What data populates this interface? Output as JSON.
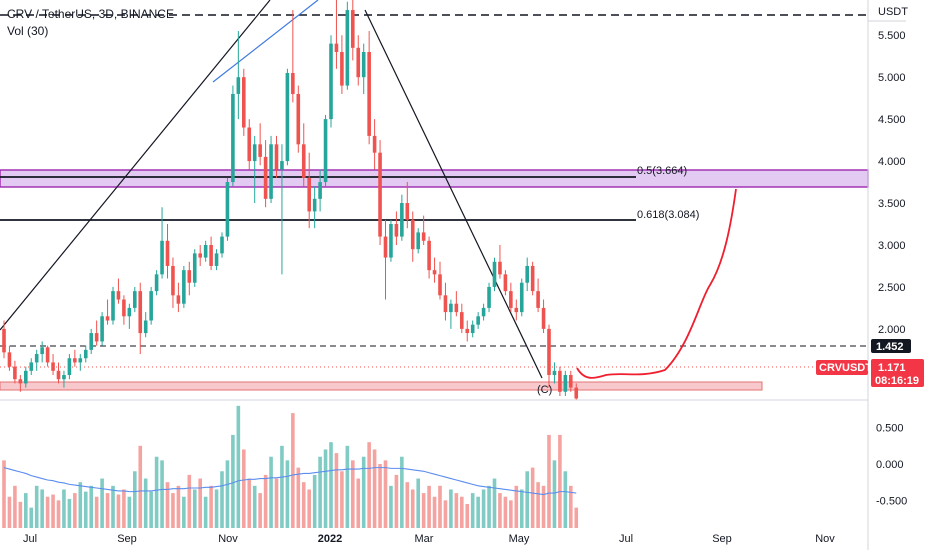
{
  "header": {
    "symbol_title": "CRV / TetherUS, 3D, BINANCE",
    "volume_label": "Vol (30)"
  },
  "price_scale": {
    "currency": "USDT"
  },
  "colors": {
    "up": "#26a69a",
    "down": "#ef5350",
    "vol_up": "#80cbc4",
    "vol_down": "#f5a3a0",
    "ma": "#5b8def",
    "zone": "#9c27b0",
    "accent_red": "#f23645"
  },
  "chart_data": [
    {
      "type": "candlestick",
      "title": "CRV / TetherUS, 3D, BINANCE",
      "x_ticks": [
        "Jul",
        "Sep",
        "Nov",
        "2022",
        "Mar",
        "May",
        "Jul",
        "Sep",
        "Nov"
      ],
      "y_ticks": [
        "5.500",
        "5.000",
        "4.500",
        "4.000",
        "3.500",
        "3.000",
        "2.500",
        "2.000"
      ],
      "ylim": [
        1.2,
        5.92
      ],
      "grid": false,
      "horizontal_levels": [
        {
          "label": "0.5(3.664)",
          "value": 3.664
        },
        {
          "label": "0.618(3.084)",
          "value": 3.084
        }
      ],
      "price_markers": [
        {
          "label": "1.452",
          "value": 1.452
        },
        {
          "label": "CRVUSDT",
          "value": 1.171,
          "extra": "1.171",
          "countdown": "08:16:19"
        }
      ],
      "annotations": [
        "(C)"
      ],
      "series": [
        {
          "name": "CRVUSDT",
          "ohlc": [
            [
              2.0,
              2.1,
              1.65,
              1.72
            ],
            [
              1.72,
              1.8,
              1.5,
              1.55
            ],
            [
              1.55,
              1.62,
              1.35,
              1.4
            ],
            [
              1.4,
              1.45,
              1.25,
              1.35
            ],
            [
              1.35,
              1.55,
              1.3,
              1.5
            ],
            [
              1.5,
              1.65,
              1.45,
              1.6
            ],
            [
              1.6,
              1.75,
              1.5,
              1.7
            ],
            [
              1.7,
              1.85,
              1.6,
              1.78
            ],
            [
              1.78,
              1.8,
              1.55,
              1.6
            ],
            [
              1.6,
              1.7,
              1.45,
              1.5
            ],
            [
              1.5,
              1.6,
              1.35,
              1.4
            ],
            [
              1.4,
              1.5,
              1.3,
              1.45
            ],
            [
              1.45,
              1.7,
              1.4,
              1.65
            ],
            [
              1.65,
              1.75,
              1.55,
              1.6
            ],
            [
              1.6,
              1.7,
              1.5,
              1.65
            ],
            [
              1.65,
              1.8,
              1.6,
              1.75
            ],
            [
              1.75,
              2.0,
              1.7,
              1.95
            ],
            [
              1.95,
              2.1,
              1.8,
              1.85
            ],
            [
              1.85,
              2.2,
              1.8,
              2.15
            ],
            [
              2.15,
              2.35,
              2.05,
              2.1
            ],
            [
              2.1,
              2.5,
              2.05,
              2.45
            ],
            [
              2.45,
              2.6,
              2.3,
              2.35
            ],
            [
              2.35,
              2.4,
              2.05,
              2.15
            ],
            [
              2.15,
              2.3,
              2.0,
              2.25
            ],
            [
              2.25,
              2.5,
              2.2,
              2.45
            ],
            [
              2.45,
              2.55,
              1.7,
              1.95
            ],
            [
              1.95,
              2.2,
              1.9,
              2.1
            ],
            [
              2.1,
              2.5,
              2.05,
              2.45
            ],
            [
              2.45,
              2.7,
              2.4,
              2.65
            ],
            [
              2.65,
              3.45,
              2.6,
              3.05
            ],
            [
              3.05,
              3.25,
              2.6,
              2.75
            ],
            [
              2.75,
              2.85,
              2.25,
              2.4
            ],
            [
              2.4,
              2.55,
              2.2,
              2.3
            ],
            [
              2.3,
              2.75,
              2.25,
              2.7
            ],
            [
              2.7,
              2.8,
              2.4,
              2.55
            ],
            [
              2.55,
              2.95,
              2.5,
              2.9
            ],
            [
              2.9,
              3.0,
              2.75,
              2.85
            ],
            [
              2.85,
              3.05,
              2.8,
              3.0
            ],
            [
              3.0,
              3.1,
              2.7,
              2.75
            ],
            [
              2.75,
              2.95,
              2.7,
              2.9
            ],
            [
              2.9,
              3.15,
              2.85,
              3.1
            ],
            [
              3.1,
              3.8,
              3.05,
              3.75
            ],
            [
              3.75,
              4.9,
              3.7,
              4.8
            ],
            [
              4.8,
              5.55,
              4.5,
              5.0
            ],
            [
              5.0,
              5.1,
              4.3,
              4.4
            ],
            [
              4.4,
              4.5,
              3.9,
              4.0
            ],
            [
              4.0,
              4.3,
              3.5,
              4.2
            ],
            [
              4.2,
              4.45,
              3.95,
              4.05
            ],
            [
              4.05,
              4.25,
              3.45,
              3.55
            ],
            [
              3.55,
              4.3,
              3.5,
              4.2
            ],
            [
              4.2,
              4.3,
              3.8,
              3.9
            ],
            [
              3.9,
              4.2,
              2.65,
              4.0
            ],
            [
              4.0,
              5.1,
              3.95,
              5.05
            ],
            [
              5.05,
              5.8,
              4.7,
              4.8
            ],
            [
              4.8,
              4.9,
              4.1,
              4.2
            ],
            [
              4.2,
              4.45,
              3.7,
              3.8
            ],
            [
              3.8,
              4.1,
              3.2,
              3.4
            ],
            [
              3.4,
              3.7,
              3.2,
              3.55
            ],
            [
              3.55,
              3.9,
              3.4,
              3.75
            ],
            [
              3.75,
              4.55,
              3.7,
              4.5
            ],
            [
              4.5,
              5.5,
              4.4,
              5.4
            ],
            [
              5.4,
              5.95,
              5.1,
              5.3
            ],
            [
              5.3,
              5.5,
              4.8,
              4.9
            ],
            [
              4.9,
              5.9,
              4.85,
              5.8
            ],
            [
              5.8,
              5.95,
              5.2,
              5.35
            ],
            [
              5.35,
              5.5,
              4.9,
              5.0
            ],
            [
              5.0,
              5.4,
              4.8,
              5.3
            ],
            [
              5.3,
              5.55,
              4.2,
              4.3
            ],
            [
              4.3,
              4.5,
              3.9,
              4.1
            ],
            [
              4.1,
              4.25,
              3.0,
              3.1
            ],
            [
              3.1,
              3.3,
              2.35,
              2.85
            ],
            [
              2.85,
              3.3,
              2.8,
              3.25
            ],
            [
              3.25,
              3.4,
              3.0,
              3.1
            ],
            [
              3.1,
              3.6,
              3.05,
              3.5
            ],
            [
              3.5,
              3.75,
              3.2,
              3.3
            ],
            [
              3.3,
              3.4,
              2.8,
              2.95
            ],
            [
              2.95,
              3.2,
              2.9,
              3.15
            ],
            [
              3.15,
              3.35,
              3.0,
              3.05
            ],
            [
              3.05,
              3.1,
              2.6,
              2.7
            ],
            [
              2.7,
              2.85,
              2.55,
              2.65
            ],
            [
              2.65,
              2.8,
              2.35,
              2.4
            ],
            [
              2.4,
              2.55,
              2.1,
              2.2
            ],
            [
              2.2,
              2.35,
              2.0,
              2.3
            ],
            [
              2.3,
              2.45,
              2.15,
              2.2
            ],
            [
              2.2,
              2.3,
              1.95,
              2.0
            ],
            [
              2.0,
              2.1,
              1.85,
              1.95
            ],
            [
              1.95,
              2.1,
              1.9,
              2.05
            ],
            [
              2.05,
              2.2,
              2.0,
              2.15
            ],
            [
              2.15,
              2.3,
              2.1,
              2.25
            ],
            [
              2.25,
              2.55,
              2.2,
              2.5
            ],
            [
              2.5,
              2.85,
              2.45,
              2.8
            ],
            [
              2.8,
              3.0,
              2.6,
              2.65
            ],
            [
              2.65,
              2.7,
              2.4,
              2.45
            ],
            [
              2.45,
              2.55,
              2.2,
              2.25
            ],
            [
              2.25,
              2.35,
              2.1,
              2.2
            ],
            [
              2.2,
              2.6,
              2.15,
              2.55
            ],
            [
              2.55,
              2.85,
              2.45,
              2.75
            ],
            [
              2.75,
              2.8,
              2.4,
              2.45
            ],
            [
              2.45,
              2.6,
              2.2,
              2.25
            ],
            [
              2.25,
              2.35,
              1.95,
              2.0
            ],
            [
              2.0,
              2.05,
              1.3,
              1.45
            ],
            [
              1.45,
              1.6,
              1.35,
              1.5
            ],
            [
              1.5,
              1.55,
              1.2,
              1.25
            ],
            [
              1.25,
              1.5,
              1.2,
              1.45
            ],
            [
              1.45,
              1.5,
              1.25,
              1.3
            ],
            [
              1.3,
              1.35,
              1.15,
              1.17
            ]
          ]
        },
        {
          "name": "Vol (30)",
          "y_ticks": [
            "0.500",
            "0.000",
            "-0.500"
          ],
          "ylim": [
            -0.88,
            0.88
          ],
          "values": [
            0.05,
            -0.45,
            -0.3,
            -0.52,
            -0.4,
            -0.6,
            -0.3,
            -0.35,
            -0.45,
            -0.42,
            -0.5,
            -0.35,
            -0.48,
            -0.4,
            -0.25,
            -0.38,
            -0.3,
            -0.45,
            -0.2,
            -0.4,
            -0.3,
            -0.42,
            -0.35,
            -0.45,
            -0.1,
            0.25,
            -0.2,
            -0.38,
            0.1,
            0.05,
            -0.25,
            -0.4,
            -0.3,
            -0.45,
            -0.15,
            -0.35,
            -0.2,
            -0.45,
            -0.3,
            -0.35,
            -0.1,
            0.05,
            0.4,
            0.8,
            0.2,
            -0.2,
            -0.3,
            -0.4,
            -0.15,
            0.1,
            -0.2,
            0.25,
            0.05,
            0.7,
            -0.05,
            -0.25,
            -0.35,
            -0.15,
            0.1,
            0.2,
            0.3,
            0.15,
            -0.1,
            0.25,
            0.05,
            -0.2,
            0.1,
            0.3,
            0.2,
            0.0,
            0.05,
            -0.3,
            -0.15,
            0.1,
            -0.25,
            -0.35,
            -0.2,
            -0.4,
            -0.3,
            -0.45,
            -0.3,
            -0.5,
            -0.35,
            -0.4,
            -0.45,
            -0.55,
            -0.4,
            -0.45,
            -0.35,
            -0.3,
            -0.2,
            -0.4,
            -0.45,
            -0.5,
            -0.3,
            -0.35,
            -0.1,
            -0.05,
            -0.25,
            -0.3,
            0.4,
            0.05,
            0.4,
            -0.1,
            -0.3,
            -0.6
          ],
          "ma": [
            -0.05,
            -0.07,
            -0.09,
            -0.11,
            -0.13,
            -0.16,
            -0.18,
            -0.2,
            -0.22,
            -0.23,
            -0.25,
            -0.26,
            -0.28,
            -0.29,
            -0.3,
            -0.31,
            -0.32,
            -0.33,
            -0.34,
            -0.35,
            -0.36,
            -0.37,
            -0.37,
            -0.38,
            -0.38,
            -0.37,
            -0.37,
            -0.37,
            -0.36,
            -0.35,
            -0.35,
            -0.34,
            -0.34,
            -0.34,
            -0.33,
            -0.33,
            -0.33,
            -0.32,
            -0.32,
            -0.31,
            -0.3,
            -0.28,
            -0.26,
            -0.23,
            -0.22,
            -0.21,
            -0.21,
            -0.2,
            -0.2,
            -0.19,
            -0.19,
            -0.18,
            -0.17,
            -0.15,
            -0.14,
            -0.13,
            -0.13,
            -0.12,
            -0.11,
            -0.1,
            -0.09,
            -0.08,
            -0.08,
            -0.07,
            -0.07,
            -0.07,
            -0.06,
            -0.06,
            -0.05,
            -0.05,
            -0.05,
            -0.06,
            -0.06,
            -0.06,
            -0.07,
            -0.08,
            -0.09,
            -0.1,
            -0.12,
            -0.14,
            -0.16,
            -0.18,
            -0.2,
            -0.22,
            -0.24,
            -0.26,
            -0.28,
            -0.3,
            -0.31,
            -0.32,
            -0.33,
            -0.34,
            -0.35,
            -0.36,
            -0.37,
            -0.38,
            -0.39,
            -0.4,
            -0.41,
            -0.42,
            -0.4,
            -0.4,
            -0.38,
            -0.38,
            -0.39,
            -0.4
          ]
        }
      ]
    }
  ]
}
